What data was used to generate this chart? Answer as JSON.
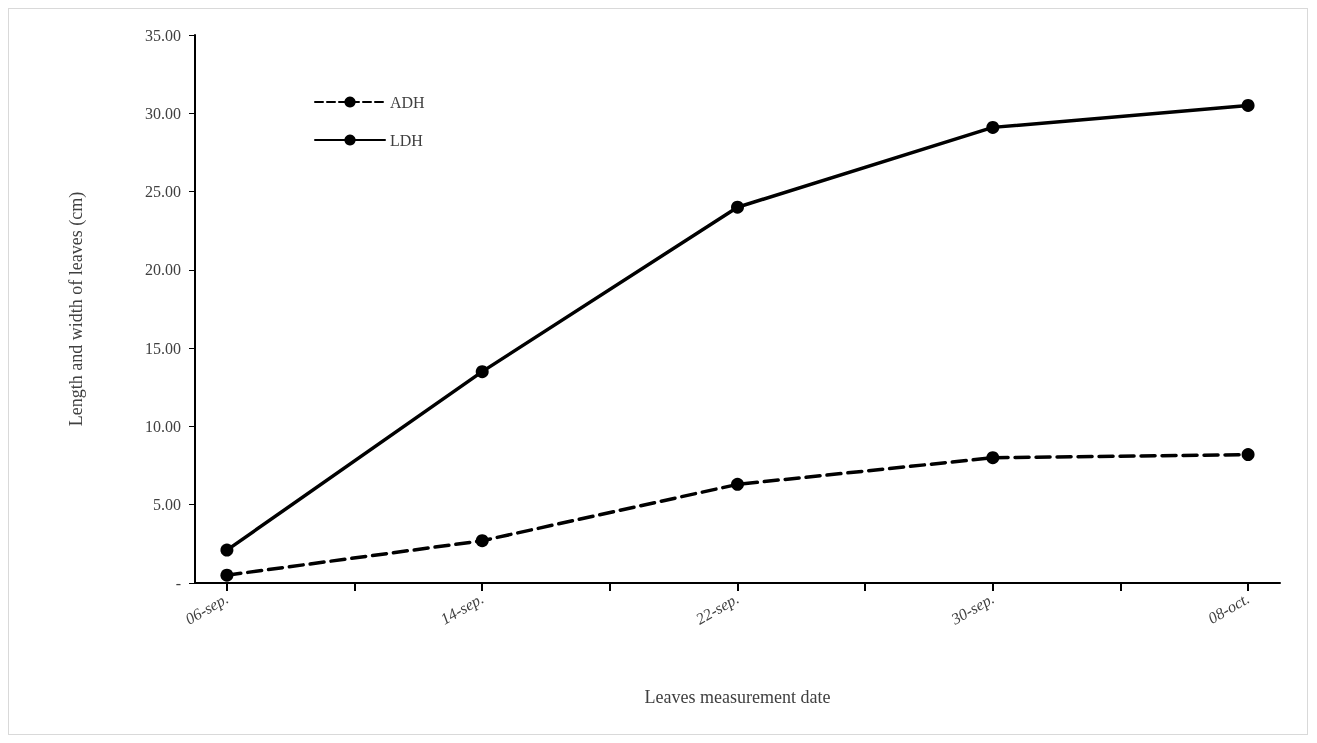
{
  "chart_data": {
    "type": "line",
    "xlabel": "Leaves measurement date",
    "ylabel": "Length and width of leaves (cm)",
    "x": [
      "--09-06",
      "--09-14",
      "--09-22",
      "--09-30",
      "--10-08"
    ],
    "xlim": [
      "--09-05",
      "--10-09"
    ],
    "xticks": [
      {
        "value": "--09-06",
        "label": "06-sep."
      },
      {
        "value": "--09-10",
        "label": null
      },
      {
        "value": "--09-14",
        "label": "14-sep."
      },
      {
        "value": "--09-18",
        "label": null
      },
      {
        "value": "--09-22",
        "label": "22-sep."
      },
      {
        "value": "--09-26",
        "label": null
      },
      {
        "value": "--09-30",
        "label": "30-sep."
      },
      {
        "value": "--10-04",
        "label": null
      },
      {
        "value": "--10-08",
        "label": "08-oct."
      }
    ],
    "ylim": [
      0,
      35
    ],
    "yticks": [
      {
        "value": 0,
        "label": "-"
      },
      {
        "value": 5,
        "label": "5.00"
      },
      {
        "value": 10,
        "label": "10.00"
      },
      {
        "value": 15,
        "label": "15.00"
      },
      {
        "value": 20,
        "label": "20.00"
      },
      {
        "value": 25,
        "label": "25.00"
      },
      {
        "value": 30,
        "label": "30.00"
      },
      {
        "value": 35,
        "label": "35.00"
      }
    ],
    "series": [
      {
        "name": "ADH",
        "color": "#000000",
        "line_style": "dashed",
        "values": [
          0.5,
          2.7,
          6.3,
          8.0,
          8.2
        ]
      },
      {
        "name": "LDH",
        "color": "#000000",
        "line_style": "solid",
        "values": [
          2.1,
          13.5,
          24.0,
          29.1,
          30.5
        ]
      }
    ],
    "marker": "circle",
    "grid": false,
    "legend": "top left"
  }
}
